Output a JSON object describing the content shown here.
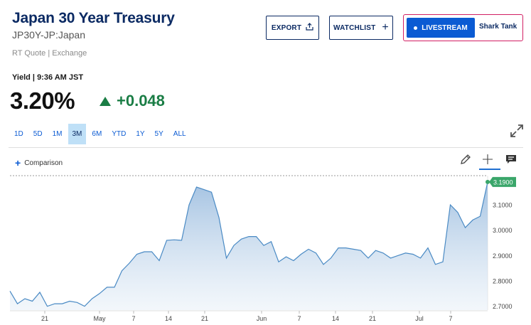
{
  "header": {
    "title": "Japan 30 Year Treasury",
    "ticker": "JP30Y-JP:Japan",
    "quote_source": "RT Quote | Exchange"
  },
  "toolbar": {
    "export_label": "EXPORT",
    "watchlist_label": "WATCHLIST",
    "livestream_label": "LIVESTREAM",
    "livestream_show": "Shark Tank"
  },
  "quote": {
    "label": "Yield | 9:36 AM JST",
    "value": "3.20%",
    "change": "+0.048",
    "change_color": "#1a7d45"
  },
  "ranges": {
    "items": [
      "1D",
      "5D",
      "1M",
      "3M",
      "6M",
      "YTD",
      "1Y",
      "5Y",
      "ALL"
    ],
    "selected": "3M"
  },
  "chart_controls": {
    "comparison_label": "Comparison",
    "icons": [
      "pencil-icon",
      "crosshair-icon",
      "chat-icon",
      "expand-icon"
    ]
  },
  "chart_data": {
    "type": "area",
    "x_labels": [
      "21",
      "May",
      "7",
      "14",
      "21",
      "Jun",
      "7",
      "14",
      "21",
      "Jul",
      "7"
    ],
    "y_ticks": [
      "3.1000",
      "3.0000",
      "2.9000",
      "2.8000",
      "2.7000"
    ],
    "ylim": [
      2.685,
      3.215
    ],
    "last_value_label": "3.1900",
    "series": [
      {
        "values": [
          2.76,
          2.71,
          2.73,
          2.72,
          2.755,
          2.7,
          2.71,
          2.71,
          2.72,
          2.715,
          2.7,
          2.73,
          2.75,
          2.775,
          2.775,
          2.84,
          2.87,
          2.905,
          2.915,
          2.915,
          2.88,
          2.96,
          2.962,
          2.96,
          3.1,
          3.17,
          3.16,
          3.15,
          3.05,
          2.89,
          2.94,
          2.965,
          2.975,
          2.975,
          2.94,
          2.955,
          2.875,
          2.895,
          2.88,
          2.905,
          2.925,
          2.91,
          2.865,
          2.89,
          2.93,
          2.93,
          2.925,
          2.92,
          2.89,
          2.92,
          2.91,
          2.89,
          2.9,
          2.91,
          2.905,
          2.89,
          2.93,
          2.865,
          2.875,
          3.1,
          3.07,
          3.01,
          3.04,
          3.055,
          3.19
        ],
        "line_color": "#4a8ac4",
        "fill_color": "#c9dcef"
      }
    ],
    "grid": false
  }
}
